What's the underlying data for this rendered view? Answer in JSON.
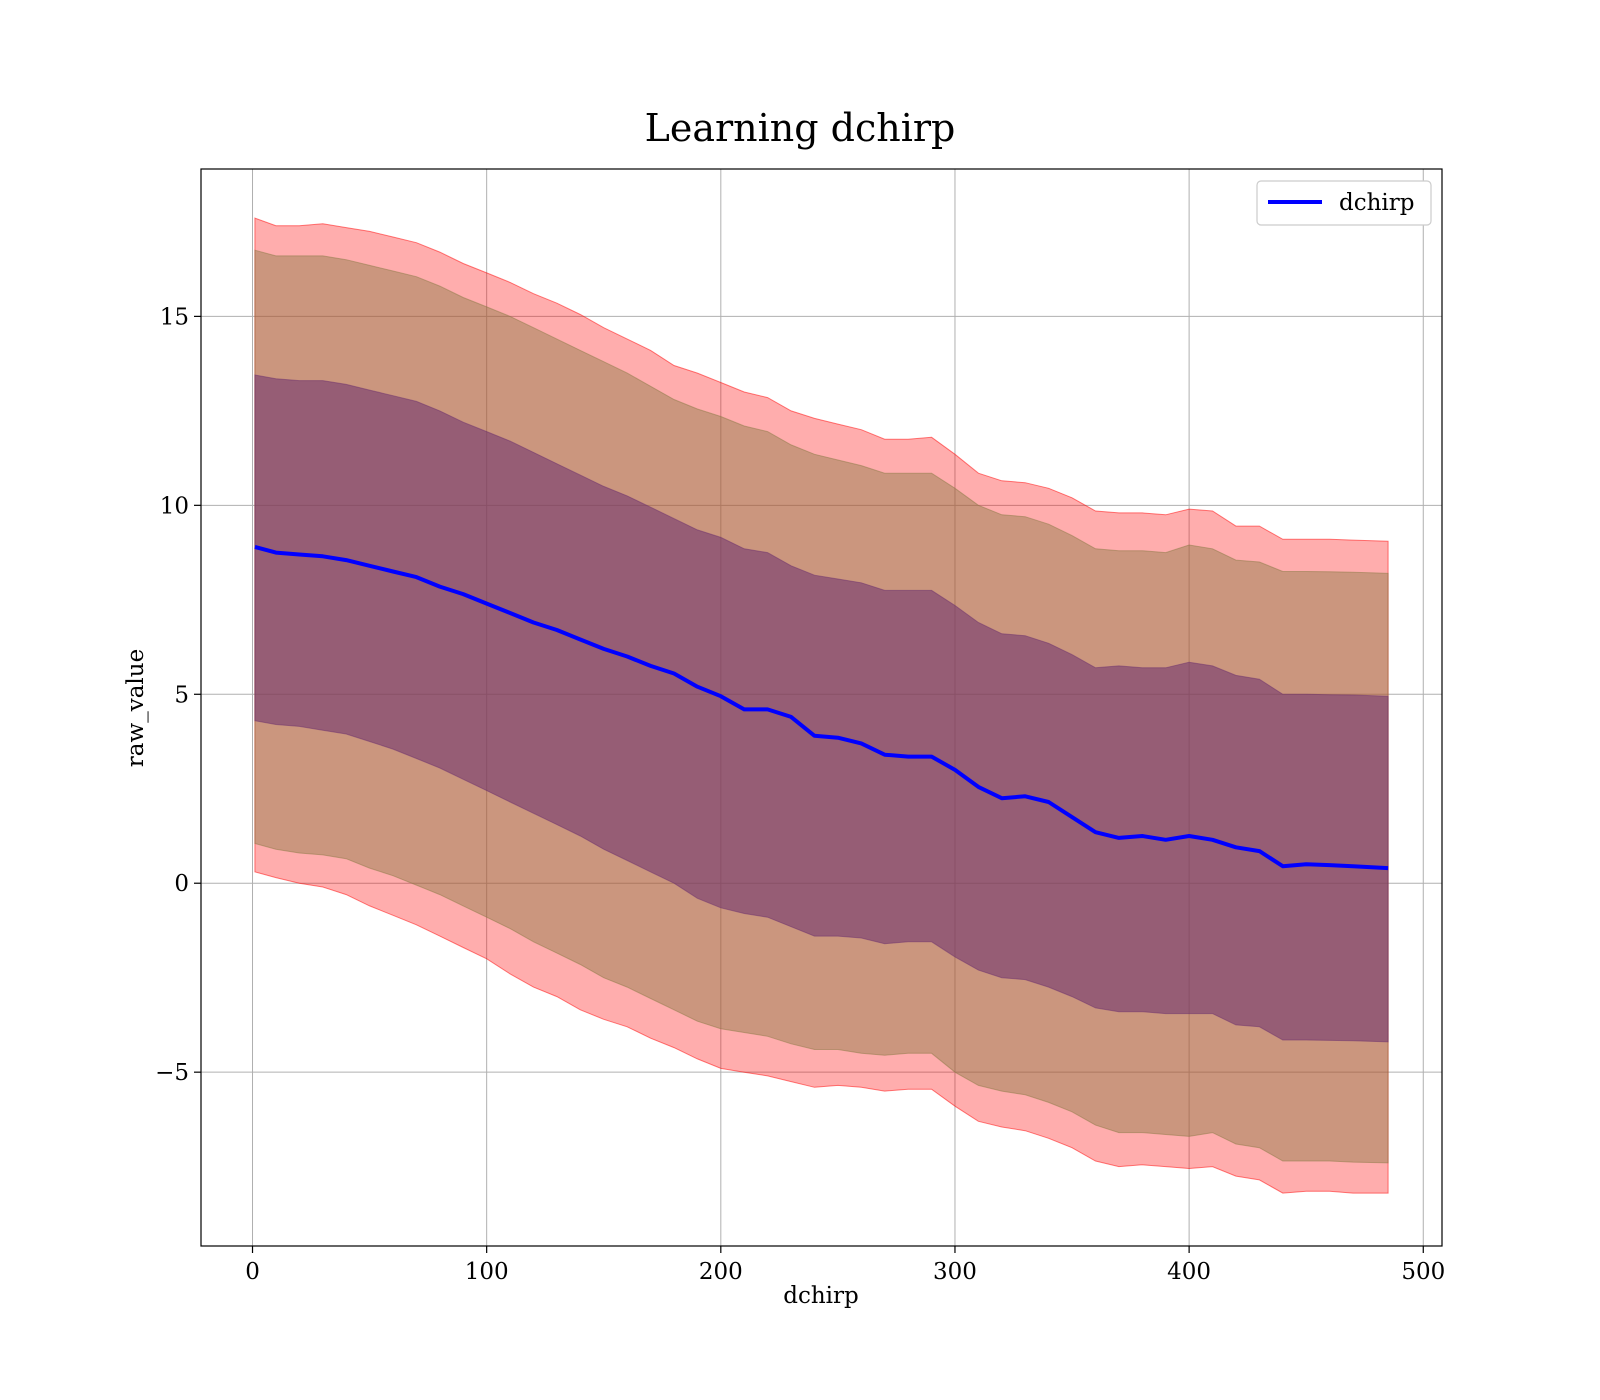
{
  "chart_data": {
    "type": "line",
    "title": "Learning dchirp",
    "xlabel": "dchirp",
    "ylabel": "raw_value",
    "xlim": [
      -22,
      508
    ],
    "ylim": [
      -9.6,
      18.9
    ],
    "x_ticks": [
      0,
      100,
      200,
      300,
      400,
      500
    ],
    "y_ticks": [
      -5,
      0,
      5,
      10,
      15
    ],
    "y_tick_labels": [
      "−5",
      "0",
      "5",
      "10",
      "15"
    ],
    "grid": true,
    "legend": {
      "placement": "top-right",
      "entries": [
        "dchirp"
      ]
    },
    "colors": {
      "line": "#0000ff",
      "band_outer": "#ff0000",
      "band_middle": "#8b7a45",
      "band_inner": "#6b2f6e"
    },
    "series": [
      {
        "name": "dchirp",
        "x": [
          1,
          10,
          20,
          30,
          40,
          50,
          60,
          70,
          80,
          90,
          100,
          110,
          120,
          130,
          140,
          150,
          160,
          170,
          180,
          190,
          200,
          210,
          220,
          230,
          240,
          250,
          260,
          270,
          280,
          290,
          300,
          310,
          320,
          330,
          340,
          350,
          360,
          370,
          380,
          390,
          400,
          410,
          420,
          430,
          440,
          450,
          460,
          470,
          485
        ],
        "values": [
          8.9,
          8.75,
          8.7,
          8.65,
          8.55,
          8.4,
          8.25,
          8.1,
          7.85,
          7.65,
          7.4,
          7.15,
          6.9,
          6.7,
          6.45,
          6.2,
          6.0,
          5.75,
          5.55,
          5.2,
          4.95,
          4.6,
          4.6,
          4.4,
          3.9,
          3.85,
          3.7,
          3.4,
          3.35,
          3.35,
          3.0,
          2.55,
          2.25,
          2.3,
          2.15,
          1.75,
          1.35,
          1.2,
          1.25,
          1.15,
          1.25,
          1.15,
          0.95,
          0.85,
          0.45,
          0.5,
          0.48,
          0.45,
          0.4
        ]
      }
    ],
    "bands": [
      {
        "level": "outer",
        "lower": [
          0.3,
          0.15,
          0.0,
          -0.1,
          -0.3,
          -0.6,
          -0.85,
          -1.1,
          -1.4,
          -1.7,
          -2.0,
          -2.4,
          -2.75,
          -3.0,
          -3.35,
          -3.6,
          -3.8,
          -4.1,
          -4.35,
          -4.65,
          -4.9,
          -5.0,
          -5.1,
          -5.25,
          -5.4,
          -5.35,
          -5.4,
          -5.5,
          -5.45,
          -5.45,
          -5.9,
          -6.3,
          -6.45,
          -6.55,
          -6.75,
          -7.0,
          -7.35,
          -7.5,
          -7.45,
          -7.5,
          -7.55,
          -7.5,
          -7.75,
          -7.85,
          -8.2,
          -8.15,
          -8.15,
          -8.2,
          -8.2
        ],
        "upper": [
          17.6,
          17.4,
          17.4,
          17.45,
          17.35,
          17.25,
          17.1,
          16.95,
          16.7,
          16.4,
          16.15,
          15.9,
          15.6,
          15.35,
          15.05,
          14.7,
          14.4,
          14.1,
          13.7,
          13.5,
          13.25,
          13.0,
          12.85,
          12.5,
          12.3,
          12.15,
          12.0,
          11.75,
          11.75,
          11.8,
          11.35,
          10.85,
          10.65,
          10.6,
          10.45,
          10.2,
          9.85,
          9.8,
          9.8,
          9.75,
          9.9,
          9.85,
          9.45,
          9.45,
          9.1,
          9.1,
          9.1,
          9.08,
          9.05
        ]
      },
      {
        "level": "middle",
        "lower": [
          1.05,
          0.9,
          0.8,
          0.75,
          0.65,
          0.4,
          0.2,
          -0.05,
          -0.3,
          -0.6,
          -0.9,
          -1.2,
          -1.55,
          -1.85,
          -2.15,
          -2.5,
          -2.75,
          -3.05,
          -3.35,
          -3.65,
          -3.85,
          -3.95,
          -4.05,
          -4.25,
          -4.4,
          -4.4,
          -4.5,
          -4.55,
          -4.5,
          -4.5,
          -5.0,
          -5.35,
          -5.5,
          -5.6,
          -5.8,
          -6.05,
          -6.4,
          -6.6,
          -6.6,
          -6.65,
          -6.7,
          -6.6,
          -6.9,
          -7.0,
          -7.35,
          -7.35,
          -7.35,
          -7.38,
          -7.4
        ],
        "upper": [
          16.75,
          16.6,
          16.6,
          16.6,
          16.5,
          16.35,
          16.2,
          16.05,
          15.8,
          15.5,
          15.25,
          15.0,
          14.7,
          14.4,
          14.1,
          13.8,
          13.5,
          13.15,
          12.8,
          12.55,
          12.35,
          12.1,
          11.95,
          11.6,
          11.35,
          11.2,
          11.05,
          10.85,
          10.85,
          10.85,
          10.45,
          10.0,
          9.75,
          9.7,
          9.5,
          9.2,
          8.85,
          8.8,
          8.8,
          8.75,
          8.95,
          8.85,
          8.55,
          8.5,
          8.25,
          8.25,
          8.24,
          8.23,
          8.2
        ]
      },
      {
        "level": "inner",
        "lower": [
          4.3,
          4.2,
          4.15,
          4.05,
          3.95,
          3.75,
          3.55,
          3.3,
          3.05,
          2.75,
          2.45,
          2.15,
          1.85,
          1.55,
          1.25,
          0.9,
          0.6,
          0.3,
          0.0,
          -0.4,
          -0.65,
          -0.8,
          -0.9,
          -1.15,
          -1.4,
          -1.4,
          -1.45,
          -1.6,
          -1.55,
          -1.55,
          -1.95,
          -2.3,
          -2.5,
          -2.55,
          -2.75,
          -3.0,
          -3.3,
          -3.4,
          -3.4,
          -3.45,
          -3.45,
          -3.45,
          -3.75,
          -3.8,
          -4.15,
          -4.15,
          -4.16,
          -4.17,
          -4.2
        ],
        "upper": [
          13.45,
          13.35,
          13.3,
          13.3,
          13.2,
          13.05,
          12.9,
          12.75,
          12.5,
          12.2,
          11.95,
          11.7,
          11.4,
          11.1,
          10.8,
          10.5,
          10.25,
          9.95,
          9.65,
          9.35,
          9.15,
          8.85,
          8.75,
          8.4,
          8.15,
          8.05,
          7.95,
          7.75,
          7.75,
          7.75,
          7.35,
          6.9,
          6.6,
          6.55,
          6.35,
          6.05,
          5.7,
          5.75,
          5.7,
          5.7,
          5.85,
          5.75,
          5.5,
          5.4,
          5.0,
          5.0,
          4.99,
          4.98,
          4.95
        ]
      }
    ]
  }
}
